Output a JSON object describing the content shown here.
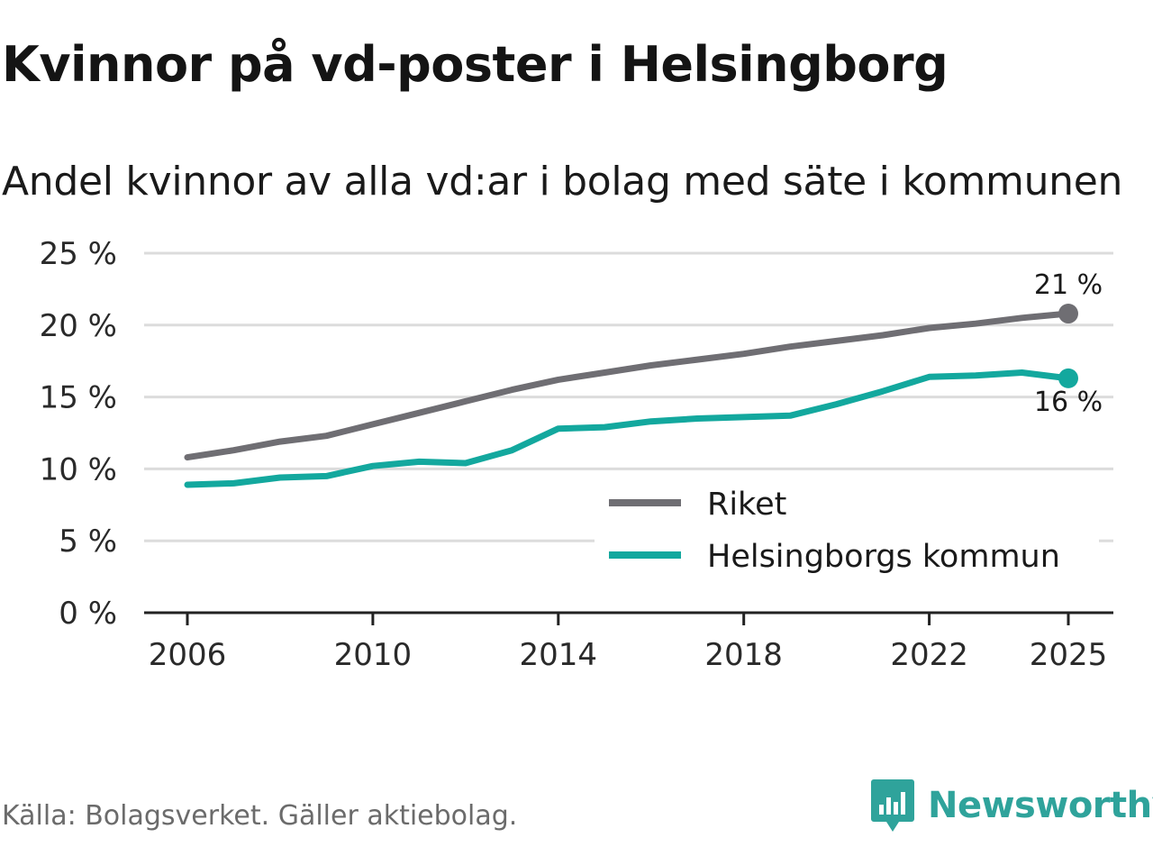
{
  "title": "Kvinnor på vd-poster i Helsingborg",
  "subtitle": "Andel kvinnor av alla vd:ar i bolag med säte i kommunen",
  "source": "Källa: Bolagsverket. Gäller aktiebolag.",
  "brand": {
    "name": "Newsworthy",
    "color": "#2fa39b"
  },
  "colors": {
    "riket": "#6f6e73",
    "helsingborg": "#13a89e",
    "grid": "#dcdcdc",
    "axis": "#222222"
  },
  "chart_data": {
    "type": "line",
    "title": "Kvinnor på vd-poster i Helsingborg",
    "subtitle": "Andel kvinnor av alla vd:ar i bolag med säte i kommunen",
    "xlabel": "",
    "ylabel": "",
    "xlim": [
      2006,
      2025
    ],
    "ylim": [
      0,
      25
    ],
    "x_ticks": [
      2006,
      2010,
      2014,
      2018,
      2022,
      2025
    ],
    "x_tick_labels": [
      "2006",
      "2010",
      "2014",
      "2018",
      "2022",
      "2025"
    ],
    "y_ticks": [
      0,
      5,
      10,
      15,
      20,
      25
    ],
    "y_tick_labels": [
      "0 %",
      "5 %",
      "10 %",
      "15 %",
      "20 %",
      "25 %"
    ],
    "grid": true,
    "legend_position": "bottom-right",
    "x": [
      2006,
      2007,
      2008,
      2009,
      2010,
      2011,
      2012,
      2013,
      2014,
      2015,
      2016,
      2017,
      2018,
      2019,
      2020,
      2021,
      2022,
      2023,
      2024,
      2025
    ],
    "series": [
      {
        "name": "Riket",
        "key": "riket",
        "values": [
          10.8,
          11.3,
          11.9,
          12.3,
          13.1,
          13.9,
          14.7,
          15.5,
          16.2,
          16.7,
          17.2,
          17.6,
          18.0,
          18.5,
          18.9,
          19.3,
          19.8,
          20.1,
          20.5,
          20.8
        ],
        "end_label": "21 %"
      },
      {
        "name": "Helsingborgs kommun",
        "key": "helsingborg",
        "values": [
          8.9,
          9.0,
          9.4,
          9.5,
          10.2,
          10.5,
          10.4,
          11.3,
          12.8,
          12.9,
          13.3,
          13.5,
          13.6,
          13.7,
          14.5,
          15.4,
          16.4,
          16.5,
          16.7,
          16.3
        ],
        "end_label": "16 %"
      }
    ]
  }
}
